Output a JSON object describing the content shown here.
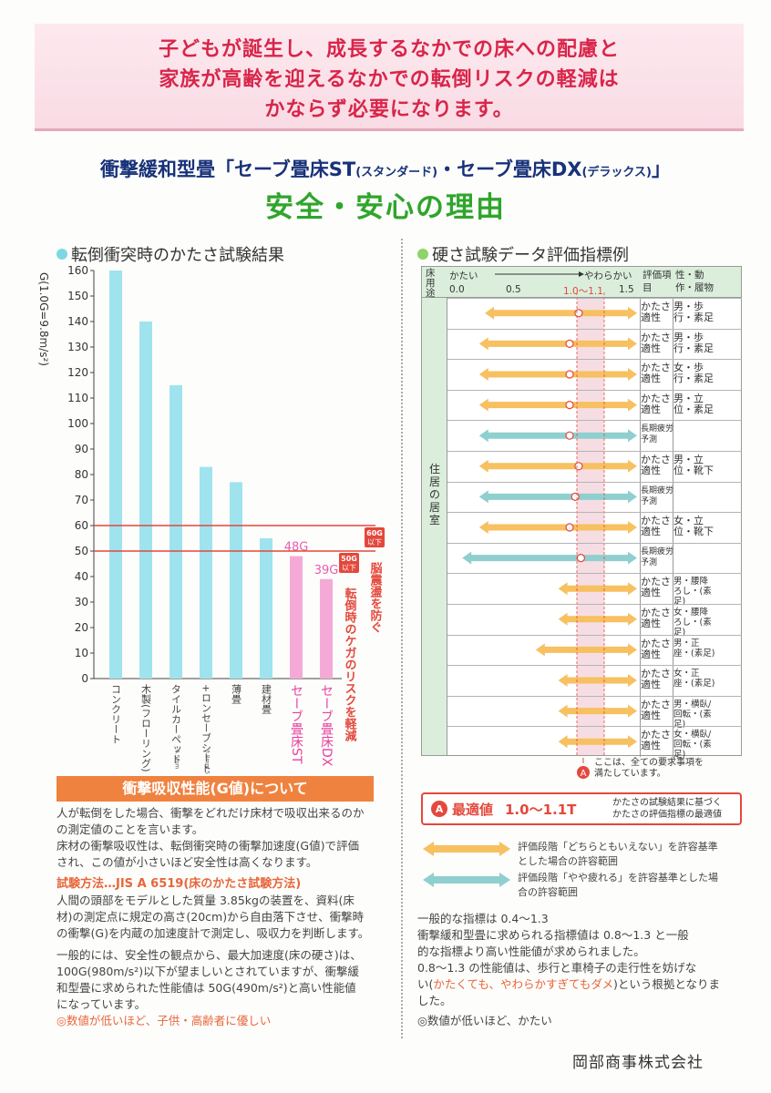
{
  "banner": {
    "line1": "子どもが誕生し、成長するなかでの床への配慮と",
    "line2": "家族が高齢を迎えるなかでの転倒リスクの軽減は",
    "line3": "かならず必要になります。"
  },
  "title": {
    "part1": "衝撃緩和型畳「セーブ畳床ST",
    "part2": "(スタンダード)",
    "part3": "・セーブ畳床DX",
    "part4": "(デラックス)",
    "part5": "」",
    "subtitle": "安全・安心の理由"
  },
  "left_section": {
    "heading": "転倒衝突時のかたさ試験結果"
  },
  "right_section": {
    "heading": "硬さ試験データ評価指標例"
  },
  "colors": {
    "cyan": "#9fe3ef",
    "pink": "#f5a9d6",
    "red": "#e4483c",
    "green": "#2fa52c",
    "orange_arrow": "#f7c060",
    "teal_arrow": "#8fcfcf"
  },
  "chart_data": {
    "type": "bar",
    "ylabel": "G(1.0G=9.8m/s²)",
    "ylim": [
      0,
      160
    ],
    "yticks": [
      0,
      10,
      20,
      30,
      40,
      50,
      60,
      70,
      80,
      90,
      100,
      110,
      120,
      130,
      140,
      150,
      160
    ],
    "categories": [
      "コンクリート",
      "木製(フローリング)",
      "タイルカーペット",
      "+ロンセーブシート 発泡層付塩ビシート",
      "薄畳",
      "建材畳",
      "セーブ畳床ST",
      "セーブ畳床DX"
    ],
    "category_notes": [
      "",
      "",
      "6.5mm",
      "3.8mm 5.0mm",
      "",
      "",
      "",
      ""
    ],
    "values": [
      160,
      140,
      115,
      83,
      77,
      55,
      48,
      39
    ],
    "highlight": [
      false,
      false,
      false,
      false,
      false,
      false,
      true,
      true
    ],
    "data_labels": {
      "6": "48G",
      "7": "39G"
    },
    "reference_lines": [
      {
        "value": 60,
        "label": "60G以下",
        "note": "脳震盪を防ぐ"
      },
      {
        "value": 50,
        "label": "50G以下",
        "note": "転倒時のケガのリスクを軽減"
      }
    ]
  },
  "info": {
    "heading": "衝撃吸収性能(G値)について",
    "p1a": "人が転倒をした場合、衝撃をどれだけ床材で吸収出来るのか",
    "p1b": "の測定値のことを言います。",
    "p2a": "床材の衝撃吸収性は、転倒衝突時の衝撃加速度(G値)で評価",
    "p2b": "され、この値が小さいほど安全性は高くなります。",
    "method": "試験方法…JIS A 6519(床のかたさ試験方法)",
    "p3a": "人間の頭部をモデルとした質量 3.85kgの装置を、資料(床",
    "p3b": "材)の測定点に規定の高さ(20cm)から自由落下させ、衝撃時",
    "p3c": "の衝撃(G)を内蔵の加速度計で測定し、吸収力を判断します。",
    "p4a": "一般的には、安全性の観点から、最大加速度(床の硬さ)は、",
    "p4b": "100G(980m/s²)以下が望ましいとされていますが、衝撃緩",
    "p4c": "和型畳に求められた性能値は 50G(490m/s²)と高い性能値",
    "p4d": "になっています。",
    "note": "◎数値が低いほど、子供・高齢者に優しい"
  },
  "hardness": {
    "h_use": "床用途",
    "h_hard": "かたい",
    "h_soft": "やわらかい",
    "scale": [
      "0.0",
      "0.5",
      "1.0～1.1",
      "1.5"
    ],
    "h_eval": "評価項目",
    "h_sex": "性・動作・履物",
    "side_label": "住居の居室",
    "rows": [
      {
        "eval": "かたさ適性",
        "sex": "男・歩行・素足",
        "arrow": "orange",
        "from": 0.25,
        "to": 1.6,
        "dot": 1.08
      },
      {
        "eval": "かたさ適性",
        "sex": "男・歩行・素足",
        "arrow": "orange",
        "from": 0.2,
        "to": 1.6,
        "dot": 1.0
      },
      {
        "eval": "かたさ適性",
        "sex": "女・歩行・素足",
        "arrow": "orange",
        "from": 0.2,
        "to": 1.6,
        "dot": 1.0
      },
      {
        "eval": "かたさ適性",
        "sex": "男・立位・素足",
        "arrow": "orange",
        "from": 0.2,
        "to": 1.6,
        "dot": 1.0
      },
      {
        "eval": "長期疲労予測",
        "sex": "",
        "arrow": "teal",
        "from": 0.2,
        "to": 1.6,
        "dot": 1.0
      },
      {
        "eval": "かたさ適性",
        "sex": "男・立位・靴下",
        "arrow": "orange",
        "from": 0.2,
        "to": 1.6,
        "dot": 1.08
      },
      {
        "eval": "長期疲労予測",
        "sex": "",
        "arrow": "teal",
        "from": 0.2,
        "to": 1.6,
        "dot": 1.05
      },
      {
        "eval": "かたさ適性",
        "sex": "女・立位・靴下",
        "arrow": "orange",
        "from": 0.2,
        "to": 1.6,
        "dot": 1.0
      },
      {
        "eval": "長期疲労予測",
        "sex": "",
        "arrow": "teal",
        "from": 0.05,
        "to": 1.6,
        "dot": 1.1
      },
      {
        "eval": "かたさ適性",
        "sex": "男・腰降ろし・(素足)",
        "arrow": "orange",
        "from": 0.9,
        "to": 1.6,
        "dot": null
      },
      {
        "eval": "かたさ適性",
        "sex": "女・腰降ろし・(素足)",
        "arrow": "orange",
        "from": 0.9,
        "to": 1.6,
        "dot": null
      },
      {
        "eval": "かたさ適性",
        "sex": "男・正座・(素足)",
        "arrow": "orange",
        "from": 0.7,
        "to": 1.6,
        "dot": null
      },
      {
        "eval": "かたさ適性",
        "sex": "女・正座・(素足)",
        "arrow": "orange",
        "from": 0.9,
        "to": 1.6,
        "dot": null
      },
      {
        "eval": "かたさ適性",
        "sex": "男・横臥/回転・(素足)",
        "arrow": "orange",
        "from": 0.9,
        "to": 1.6,
        "dot": null
      },
      {
        "eval": "かたさ適性",
        "sex": "女・横臥/回転・(素足)",
        "arrow": "orange",
        "from": 0.9,
        "to": 1.6,
        "dot": null
      }
    ],
    "below_note1": "ここは、全ての要求事項を",
    "below_note2": "満たしています。",
    "marker": "A",
    "optimal_label": "最適値",
    "optimal_value": "1.0～1.1T",
    "optimal_note1": "かたさの試験結果に基づく",
    "optimal_note2": "かたさの評価指標の最適値",
    "legend_orange1": "評価段階「どちらともいえない」を許容基準",
    "legend_orange2": "とした場合の許容範囲",
    "legend_teal1": "評価段階「やや疲れる」を許容基準とした場",
    "legend_teal2": "合の許容範囲",
    "t1": "一般的な指標は 0.4～1.3",
    "t2": "衝撃緩和型畳に求められる指標値は 0.8～1.3 と一般",
    "t3": "的な指標より高い性能値が求められました。",
    "t4": "0.8～1.3 の性能値は、歩行と車椅子の走行性を妨げな",
    "t5a": "い(",
    "t5b": "かたくても、やわらかすぎてもダメ",
    "t5c": ")という根拠となりま",
    "t6": "した。",
    "note": "◎数値が低いほど、かたい"
  },
  "company": "岡部商事株式会社"
}
